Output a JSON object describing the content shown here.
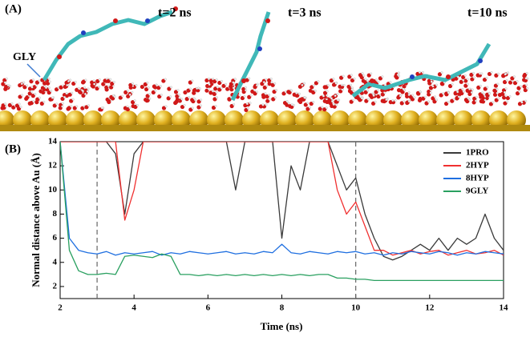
{
  "panel_a": {
    "label": "(A)",
    "time_labels": [
      "t=2 ns",
      "t=3 ns",
      "t=10 ns"
    ],
    "residue_label": "GLY"
  },
  "chart_data": {
    "type": "line",
    "panel_label": "(B)",
    "xlabel": "Time (ns)",
    "ylabel": "Normal distance above Au (Å)",
    "x": [
      2,
      2.25,
      2.5,
      2.75,
      3,
      3.25,
      3.5,
      3.75,
      4,
      4.25,
      4.5,
      4.75,
      5,
      5.25,
      5.5,
      5.75,
      6,
      6.25,
      6.5,
      6.75,
      7,
      7.25,
      7.5,
      7.75,
      8,
      8.25,
      8.5,
      8.75,
      9,
      9.25,
      9.5,
      9.75,
      10,
      10.25,
      10.5,
      10.75,
      11,
      11.25,
      11.5,
      11.75,
      12,
      12.25,
      12.5,
      12.75,
      13,
      13.25,
      13.5,
      13.75,
      14
    ],
    "series": [
      {
        "name": "1PRO",
        "color": "#3a3a3a",
        "values": [
          14,
          14,
          14,
          14,
          14,
          14,
          13,
          8,
          13,
          14,
          14,
          14,
          14,
          14,
          14,
          14,
          14,
          14,
          14,
          10,
          14,
          14,
          14,
          14,
          6,
          12,
          10,
          14,
          14,
          14,
          12,
          10,
          11,
          8,
          6,
          4.5,
          4.2,
          4.5,
          5,
          5.5,
          5,
          6,
          5,
          6,
          5.5,
          6,
          8,
          6,
          5
        ]
      },
      {
        "name": "2HYP",
        "color": "#f03030",
        "values": [
          14,
          14,
          14,
          14,
          14,
          14,
          14,
          7.5,
          10,
          14,
          14,
          14,
          14,
          14,
          14,
          14,
          14,
          14,
          14,
          14,
          14,
          14,
          14,
          14,
          14,
          14,
          14,
          14,
          14,
          14,
          10,
          8,
          9,
          7,
          5,
          5,
          4.6,
          4.8,
          5,
          4.7,
          4.9,
          5,
          4.6,
          4.8,
          5,
          4.7,
          4.8,
          5,
          4.6
        ]
      },
      {
        "name": "8HYP",
        "color": "#1f6fe0",
        "values": [
          14,
          6,
          5,
          4.8,
          4.7,
          4.9,
          4.6,
          4.8,
          4.7,
          4.8,
          4.9,
          4.6,
          4.8,
          4.7,
          4.9,
          4.8,
          4.7,
          4.8,
          4.9,
          4.7,
          4.8,
          4.7,
          4.9,
          4.8,
          5.5,
          4.8,
          4.7,
          4.9,
          4.8,
          4.7,
          4.9,
          4.8,
          4.9,
          4.7,
          4.8,
          4.6,
          4.8,
          4.7,
          4.9,
          4.8,
          4.7,
          4.9,
          4.8,
          4.6,
          4.8,
          4.7,
          4.9,
          4.8,
          4.7
        ]
      },
      {
        "name": "9GLY",
        "color": "#2aa060",
        "values": [
          14,
          5,
          3.3,
          3,
          3,
          3.1,
          3,
          4.5,
          4.6,
          4.5,
          4.4,
          4.7,
          4.5,
          3,
          3,
          2.9,
          3,
          2.9,
          3,
          2.9,
          3,
          2.9,
          3,
          2.9,
          3,
          2.9,
          3,
          2.9,
          3,
          3,
          2.7,
          2.7,
          2.6,
          2.6,
          2.5,
          2.5,
          2.5,
          2.5,
          2.5,
          2.5,
          2.5,
          2.5,
          2.5,
          2.5,
          2.5,
          2.5,
          2.5,
          2.5,
          2.5
        ]
      }
    ],
    "xlim": [
      2,
      14
    ],
    "xticks": [
      2,
      4,
      6,
      8,
      10,
      12,
      14
    ],
    "ylim": [
      1,
      14
    ],
    "yticks": [
      2,
      4,
      6,
      8,
      10,
      12,
      14
    ],
    "marker_lines_x": [
      3,
      10
    ],
    "legend": "upper right"
  }
}
